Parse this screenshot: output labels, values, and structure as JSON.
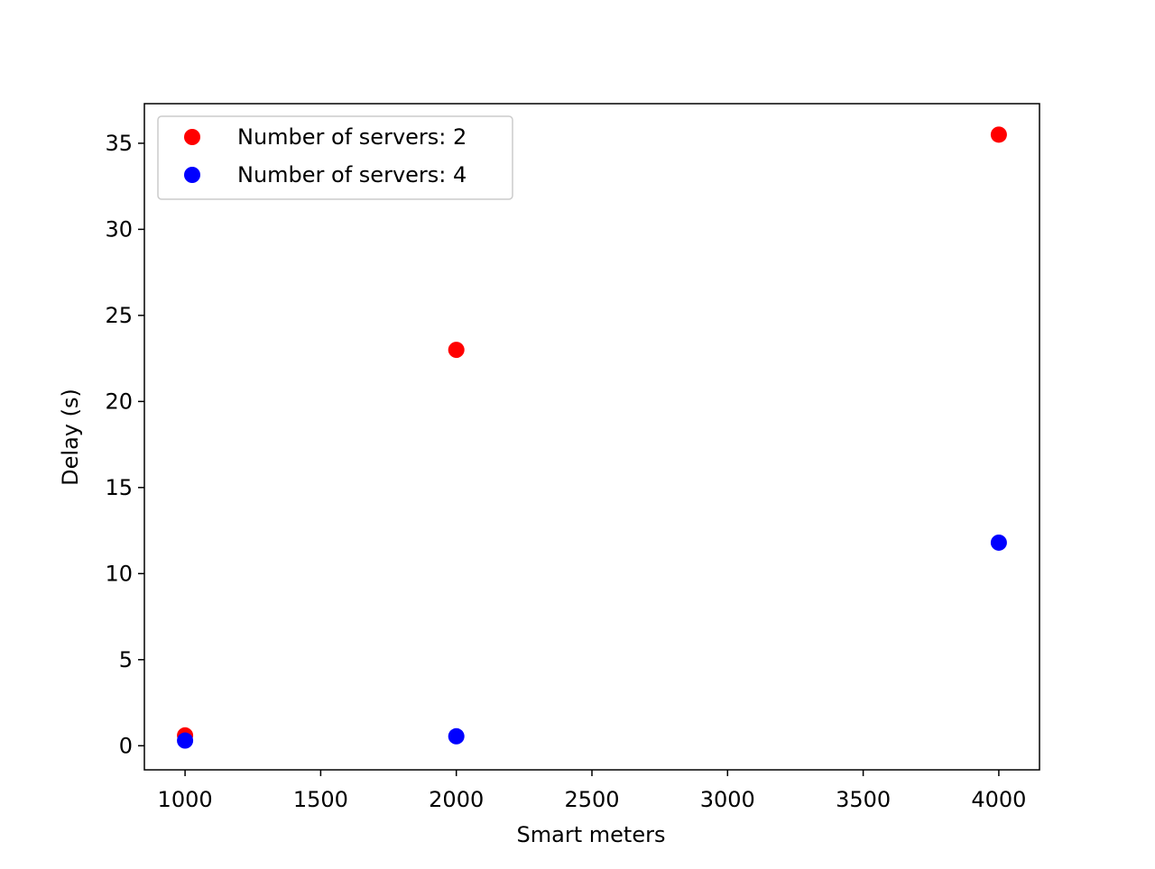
{
  "chart_data": {
    "type": "scatter",
    "title": "",
    "xlabel": "Smart meters",
    "ylabel": "Delay (s)",
    "xlim": [
      850,
      4150
    ],
    "ylim": [
      -1.4,
      37.3
    ],
    "xticks": [
      1000,
      1500,
      2000,
      2500,
      3000,
      3500,
      4000
    ],
    "yticks": [
      0,
      5,
      10,
      15,
      20,
      25,
      30,
      35
    ],
    "grid": false,
    "legend_position": "top-left",
    "series": [
      {
        "name": "Number of servers: 2",
        "color": "#ff0000",
        "points": [
          {
            "x": 1000,
            "y": 0.6
          },
          {
            "x": 2000,
            "y": 23.0
          },
          {
            "x": 4000,
            "y": 35.5
          }
        ]
      },
      {
        "name": "Number of servers: 4",
        "color": "#0000ff",
        "points": [
          {
            "x": 1000,
            "y": 0.3
          },
          {
            "x": 2000,
            "y": 0.55
          },
          {
            "x": 4000,
            "y": 11.8
          }
        ]
      }
    ]
  }
}
